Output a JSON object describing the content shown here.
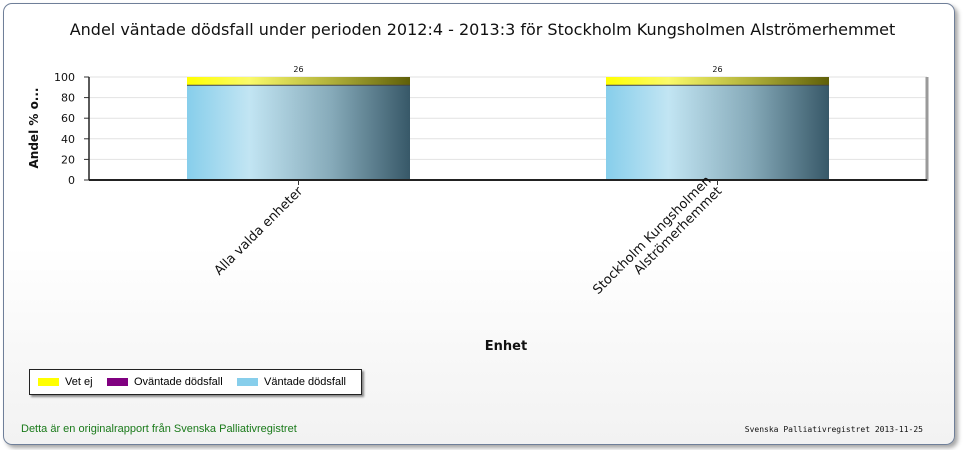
{
  "chart_data": {
    "type": "bar",
    "stacked": true,
    "title": "Andel väntade dödsfall under perioden 2012:4 - 2013:3 för Stockholm Kungsholmen Alströmerhemmet",
    "xlabel": "Enhet",
    "ylabel": "Andel % o...",
    "ylim": [
      0,
      100
    ],
    "yticks": [
      "0",
      "20",
      "40",
      "60",
      "80",
      "100"
    ],
    "grid": true,
    "legend_position": "bottom-left",
    "categories": [
      [
        "Alla valda enheter"
      ],
      [
        "Stockholm Kungsholmen",
        "Alströmerhemmet"
      ]
    ],
    "category_names": [
      "Alla valda enheter",
      "Stockholm Kungsholmen Alströmerhemmet"
    ],
    "bar_labels": [
      "26",
      "26"
    ],
    "series": [
      {
        "name": "Väntade dödsfall",
        "values": [
          92,
          92
        ],
        "color": "#87ceeb"
      },
      {
        "name": "Oväntade dödsfall",
        "values": [
          0,
          0
        ],
        "color": "#800080"
      },
      {
        "name": "Vet ej",
        "values": [
          8,
          8
        ],
        "color": "#ffff00"
      }
    ]
  },
  "legend": [
    {
      "label": "Vet ej",
      "color": "#ffff00"
    },
    {
      "label": "Oväntade dödsfall",
      "color": "#800080"
    },
    {
      "label": "Väntade dödsfall",
      "color": "#87ceeb"
    }
  ],
  "footer": {
    "left": "Detta är en originalrapport från Svenska Palliativregistret",
    "right": "Svenska Palliativregistret 2013-11-25"
  }
}
